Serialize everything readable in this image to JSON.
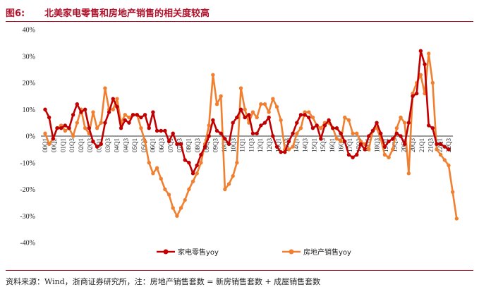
{
  "figure": {
    "label": "图6:",
    "title": "北美家电零售和房地产销售的相关度较高",
    "source": "资料来源：Wind，浙商证券研究所，注：房地产销售套数 = 新房销售套数 + 成屋销售套数"
  },
  "chart_data": {
    "type": "line",
    "ylim": [
      -40,
      40
    ],
    "y_ticks": [
      "40%",
      "30%",
      "20%",
      "10%",
      "0%",
      "-10%",
      "-20%",
      "-30%",
      "-40%"
    ],
    "y_tick_values": [
      40,
      30,
      20,
      10,
      0,
      -10,
      -20,
      -30,
      -40
    ],
    "x_tick_labels": [
      "00Q1",
      "00Q2",
      "01Q1",
      "01Q3",
      "02Q1",
      "02Q3",
      "03Q1",
      "03Q3",
      "04Q1",
      "04Q3",
      "05Q1",
      "05Q3",
      "06Q1",
      "06Q3",
      "07Q1",
      "07Q3",
      "08Q1",
      "08Q3",
      "09Q1",
      "09Q3",
      "10Q1",
      "10Q3",
      "11Q1",
      "11Q3",
      "12Q1",
      "12Q3",
      "13Q1",
      "13Q3",
      "14Q1",
      "14Q3",
      "15Q1",
      "15Q3",
      "16Q1",
      "16Q3",
      "17Q1",
      "17Q3",
      "18Q1",
      "18Q3",
      "19Q1",
      "19Q3",
      "20Q1",
      "20Q3",
      "21Q1",
      "21Q3",
      "22Q1",
      "22Q3"
    ],
    "grid": false,
    "legend_position": "bottom",
    "series": [
      {
        "name": "家电零售yoy",
        "color": "#c00000",
        "values": [
          10,
          7,
          -1,
          3,
          3,
          4,
          3,
          8,
          12,
          9,
          10,
          3,
          -2,
          -4,
          -3,
          5,
          9,
          14,
          11,
          3,
          6,
          5,
          8,
          8,
          7,
          8,
          3,
          9,
          2,
          2,
          2,
          -2,
          1,
          -3,
          -3,
          -9,
          -10,
          -14,
          -11,
          -7,
          -4,
          0,
          6,
          2,
          1,
          -1,
          -3,
          5,
          7,
          10,
          7,
          8,
          1,
          1,
          4,
          5,
          7,
          0,
          -4,
          -6,
          -6,
          -2,
          1,
          5,
          8,
          8,
          7,
          3,
          4,
          -1,
          4,
          6,
          3,
          3,
          1,
          -2,
          -7,
          -8,
          -7,
          -3,
          -5,
          0,
          2,
          5,
          1,
          -4,
          -2,
          -1,
          1,
          0,
          -3,
          5,
          15,
          16,
          32,
          27,
          4,
          3,
          -3,
          -3,
          -4,
          -5
        ],
        "marker": "circle"
      },
      {
        "name": "房地产销售yoy",
        "color": "#f08030",
        "values": [
          1,
          -3,
          -1,
          3,
          4,
          2,
          3,
          0,
          5,
          10,
          3,
          1,
          9,
          3,
          5,
          18,
          10,
          10,
          14,
          5,
          8,
          7,
          8,
          8,
          3,
          -2,
          -10,
          -14,
          -12,
          -16,
          -20,
          -22,
          -27,
          -30,
          -27,
          -24,
          -20,
          -17,
          -14,
          -10,
          -3,
          4,
          23,
          12,
          15,
          -20,
          -18,
          -15,
          -10,
          18,
          10,
          5,
          9,
          7,
          12,
          12,
          9,
          14,
          11,
          6,
          -5,
          -5,
          -4,
          1,
          3,
          9,
          9,
          7,
          4,
          3,
          5,
          5,
          3,
          -1,
          -2,
          7,
          6,
          1,
          1,
          -2,
          -3,
          -5,
          2,
          3,
          -1,
          -7,
          -8,
          -5,
          3,
          7,
          5,
          -14,
          16,
          20,
          23,
          16,
          31,
          20,
          -5,
          -7,
          -9,
          -11,
          -21,
          -31
        ],
        "marker": "circle"
      }
    ]
  }
}
